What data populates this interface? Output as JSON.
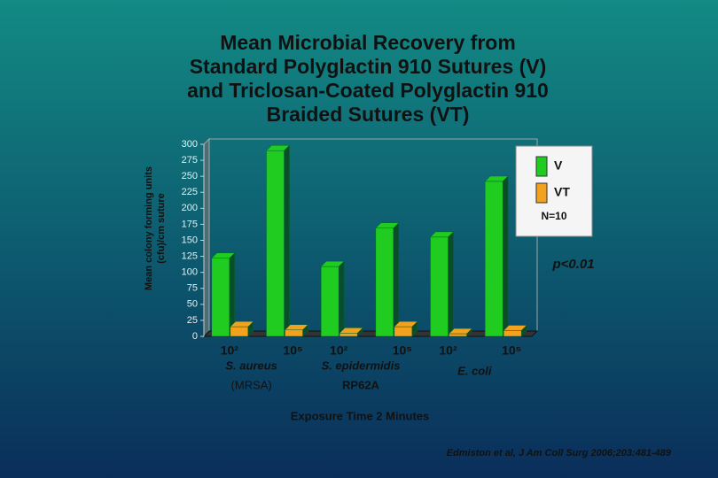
{
  "chart_data": {
    "type": "bar",
    "title": [
      "Mean Microbial Recovery from",
      "Standard Polyglactin 910 Sutures (V)",
      "and Triclosan-Coated Polyglactin 910",
      "Braided Sutures (VT)"
    ],
    "y_label": [
      "Mean colony forming units",
      "(cfu)/cm suture"
    ],
    "x_label": "Exposure Time 2 Minutes",
    "categories": [
      "10²",
      "10⁵",
      "10²",
      "10⁵",
      "10²",
      "10⁵"
    ],
    "groups": [
      {
        "label": "S. aureus",
        "sublabel": "(MRSA)"
      },
      {
        "label": "S. epidermidis",
        "sublabel": "RP62A"
      },
      {
        "label": "E. coli"
      }
    ],
    "series": [
      {
        "name": "V",
        "color": "#1fcc1f",
        "values": [
          122,
          290,
          109,
          169,
          155,
          242
        ]
      },
      {
        "name": "VT",
        "color": "#f2a21c",
        "values": [
          15,
          10,
          5,
          15,
          4,
          9
        ]
      }
    ],
    "ylim": [
      0,
      300
    ],
    "yticks": [
      0,
      25,
      50,
      75,
      100,
      125,
      150,
      175,
      200,
      225,
      250,
      275,
      300
    ],
    "legend_note": "N=10",
    "annotation": "p<0.01",
    "citation": "Edmiston et al,  J Am Coll Surg 2006;203:481-489"
  }
}
